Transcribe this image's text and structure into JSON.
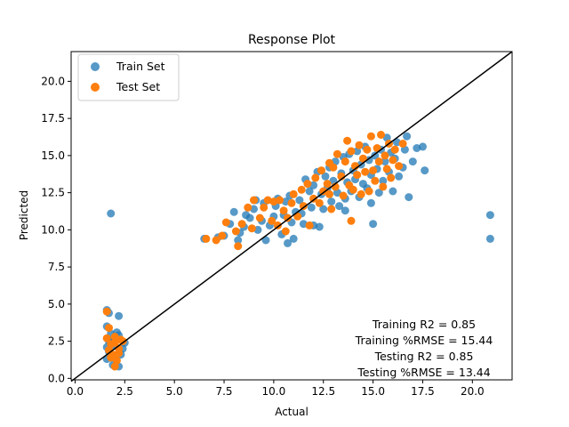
{
  "chart_data": {
    "type": "scatter",
    "title": "Response Plot",
    "xlabel": "Actual",
    "ylabel": "Predicted",
    "xlim": [
      -0.2,
      22
    ],
    "ylim": [
      -0.1,
      22
    ],
    "xticks": [
      "0.0",
      "2.5",
      "5.0",
      "7.5",
      "10.0",
      "12.5",
      "15.0",
      "17.5",
      "20.0"
    ],
    "yticks": [
      "0.0",
      "2.5",
      "5.0",
      "7.5",
      "10.0",
      "12.5",
      "15.0",
      "17.5",
      "20.0"
    ],
    "legend_position": "top-left",
    "reference_line": {
      "label": "",
      "from": [
        -0.2,
        -0.2
      ],
      "to": [
        22,
        22
      ],
      "color": "#000000"
    },
    "series": [
      {
        "name": "Train Set",
        "color": "#1f77b4",
        "points": [
          [
            1.6,
            4.6
          ],
          [
            1.7,
            4.4
          ],
          [
            2.2,
            4.2
          ],
          [
            1.8,
            11.1
          ],
          [
            1.6,
            3.5
          ],
          [
            1.8,
            3.0
          ],
          [
            2.1,
            3.1
          ],
          [
            2.2,
            2.9
          ],
          [
            1.9,
            2.6
          ],
          [
            2.5,
            2.4
          ],
          [
            1.6,
            2.1
          ],
          [
            1.7,
            1.8
          ],
          [
            2.0,
            1.5
          ],
          [
            2.3,
            1.6
          ],
          [
            1.6,
            1.3
          ],
          [
            2.2,
            0.8
          ],
          [
            1.9,
            0.9
          ],
          [
            2.4,
            2.0
          ],
          [
            1.7,
            2.5
          ],
          [
            2.0,
            2.2
          ],
          [
            6.5,
            9.4
          ],
          [
            7.2,
            9.5
          ],
          [
            7.5,
            9.6
          ],
          [
            7.8,
            10.4
          ],
          [
            8.0,
            11.2
          ],
          [
            8.3,
            9.8
          ],
          [
            8.5,
            10.2
          ],
          [
            8.2,
            9.3
          ],
          [
            8.8,
            10.8
          ],
          [
            8.6,
            11.0
          ],
          [
            9.0,
            11.4
          ],
          [
            9.2,
            10.0
          ],
          [
            9.4,
            10.6
          ],
          [
            9.1,
            12.0
          ],
          [
            9.5,
            11.8
          ],
          [
            9.6,
            9.3
          ],
          [
            9.8,
            10.3
          ],
          [
            10.0,
            10.9
          ],
          [
            10.1,
            11.6
          ],
          [
            10.2,
            12.1
          ],
          [
            10.4,
            9.7
          ],
          [
            10.5,
            11.0
          ],
          [
            10.6,
            11.9
          ],
          [
            10.8,
            12.3
          ],
          [
            10.9,
            10.5
          ],
          [
            11.0,
            9.4
          ],
          [
            10.7,
            9.1
          ],
          [
            11.1,
            11.2
          ],
          [
            11.3,
            12.0
          ],
          [
            11.5,
            10.4
          ],
          [
            11.6,
            13.4
          ],
          [
            11.8,
            12.6
          ],
          [
            11.9,
            11.5
          ],
          [
            12.0,
            13.0
          ],
          [
            12.2,
            13.9
          ],
          [
            12.3,
            10.2
          ],
          [
            12.4,
            12.4
          ],
          [
            12.5,
            11.4
          ],
          [
            12.6,
            13.6
          ],
          [
            12.7,
            12.8
          ],
          [
            12.8,
            14.2
          ],
          [
            12.9,
            11.9
          ],
          [
            13.0,
            13.3
          ],
          [
            13.1,
            14.6
          ],
          [
            13.2,
            12.5
          ],
          [
            13.3,
            11.6
          ],
          [
            13.4,
            13.8
          ],
          [
            13.5,
            14.9
          ],
          [
            13.6,
            12.1
          ],
          [
            13.7,
            13.2
          ],
          [
            13.8,
            15.1
          ],
          [
            13.9,
            12.6
          ],
          [
            14.0,
            14.0
          ],
          [
            14.1,
            13.4
          ],
          [
            14.2,
            15.3
          ],
          [
            14.3,
            12.2
          ],
          [
            14.4,
            14.4
          ],
          [
            14.5,
            13.1
          ],
          [
            14.6,
            15.6
          ],
          [
            14.7,
            12.8
          ],
          [
            14.8,
            14.7
          ],
          [
            14.9,
            13.7
          ],
          [
            15.0,
            10.4
          ],
          [
            15.1,
            15.0
          ],
          [
            15.2,
            14.1
          ],
          [
            15.3,
            12.5
          ],
          [
            15.4,
            15.4
          ],
          [
            15.5,
            13.3
          ],
          [
            15.6,
            14.6
          ],
          [
            15.7,
            16.2
          ],
          [
            15.8,
            13.9
          ],
          [
            15.9,
            15.2
          ],
          [
            16.0,
            12.6
          ],
          [
            16.1,
            14.8
          ],
          [
            16.2,
            15.9
          ],
          [
            16.3,
            13.6
          ],
          [
            16.5,
            14.2
          ],
          [
            16.6,
            15.4
          ],
          [
            16.7,
            16.3
          ],
          [
            16.8,
            12.2
          ],
          [
            17.0,
            14.6
          ],
          [
            17.2,
            15.5
          ],
          [
            17.5,
            15.6
          ],
          [
            17.6,
            14.0
          ],
          [
            20.9,
            11.0
          ],
          [
            20.9,
            9.4
          ],
          [
            12.0,
            10.3
          ],
          [
            11.4,
            11.1
          ],
          [
            13.6,
            11.3
          ],
          [
            14.9,
            11.8
          ]
        ]
      },
      {
        "name": "Test Set",
        "color": "#ff7f0e",
        "points": [
          [
            1.6,
            4.5
          ],
          [
            1.7,
            3.4
          ],
          [
            2.0,
            2.8
          ],
          [
            1.8,
            2.3
          ],
          [
            2.2,
            2.0
          ],
          [
            2.4,
            2.5
          ],
          [
            1.9,
            1.6
          ],
          [
            2.1,
            1.2
          ],
          [
            2.0,
            0.8
          ],
          [
            1.6,
            2.7
          ],
          [
            1.7,
            1.9
          ],
          [
            2.3,
            2.6
          ],
          [
            1.8,
            1.4
          ],
          [
            2.2,
            1.7
          ],
          [
            2.0,
            2.4
          ],
          [
            6.6,
            9.4
          ],
          [
            7.1,
            9.3
          ],
          [
            7.4,
            9.6
          ],
          [
            7.6,
            10.5
          ],
          [
            8.1,
            9.9
          ],
          [
            8.2,
            8.9
          ],
          [
            8.4,
            10.4
          ],
          [
            8.7,
            11.5
          ],
          [
            8.9,
            10.1
          ],
          [
            9.0,
            12.0
          ],
          [
            9.3,
            10.8
          ],
          [
            9.5,
            11.5
          ],
          [
            9.7,
            12.0
          ],
          [
            9.9,
            10.6
          ],
          [
            10.0,
            11.9
          ],
          [
            10.2,
            10.3
          ],
          [
            10.3,
            12.0
          ],
          [
            10.5,
            11.3
          ],
          [
            10.7,
            10.8
          ],
          [
            10.9,
            11.8
          ],
          [
            11.0,
            12.4
          ],
          [
            11.2,
            10.9
          ],
          [
            11.4,
            12.7
          ],
          [
            11.5,
            11.6
          ],
          [
            11.7,
            13.1
          ],
          [
            11.8,
            10.3
          ],
          [
            12.0,
            12.1
          ],
          [
            12.1,
            13.5
          ],
          [
            12.3,
            11.8
          ],
          [
            12.4,
            14.0
          ],
          [
            12.5,
            12.6
          ],
          [
            12.7,
            13.1
          ],
          [
            12.8,
            14.5
          ],
          [
            12.9,
            11.4
          ],
          [
            13.0,
            14.2
          ],
          [
            13.1,
            12.9
          ],
          [
            13.2,
            15.1
          ],
          [
            13.4,
            13.6
          ],
          [
            13.5,
            12.3
          ],
          [
            13.6,
            14.6
          ],
          [
            13.7,
            16.0
          ],
          [
            13.8,
            13.0
          ],
          [
            13.9,
            15.3
          ],
          [
            14.0,
            12.7
          ],
          [
            14.1,
            14.3
          ],
          [
            14.2,
            13.7
          ],
          [
            14.3,
            15.7
          ],
          [
            14.4,
            12.4
          ],
          [
            14.5,
            14.8
          ],
          [
            14.6,
            13.9
          ],
          [
            14.7,
            15.4
          ],
          [
            14.8,
            12.6
          ],
          [
            14.9,
            16.3
          ],
          [
            15.0,
            14.0
          ],
          [
            15.1,
            13.3
          ],
          [
            15.2,
            15.5
          ],
          [
            15.3,
            14.6
          ],
          [
            15.4,
            16.4
          ],
          [
            15.5,
            12.9
          ],
          [
            15.6,
            15.0
          ],
          [
            15.7,
            14.1
          ],
          [
            15.8,
            15.8
          ],
          [
            15.9,
            13.5
          ],
          [
            16.0,
            14.7
          ],
          [
            16.1,
            15.4
          ],
          [
            16.3,
            14.3
          ],
          [
            16.5,
            15.8
          ],
          [
            13.9,
            10.6
          ],
          [
            12.8,
            12.4
          ],
          [
            10.6,
            9.9
          ]
        ]
      }
    ],
    "annotations": [
      "Training R2 = 0.85",
      "Training %RMSE = 15.44",
      "Testing R2 = 0.85",
      "Testing %RMSE = 13.44"
    ]
  }
}
